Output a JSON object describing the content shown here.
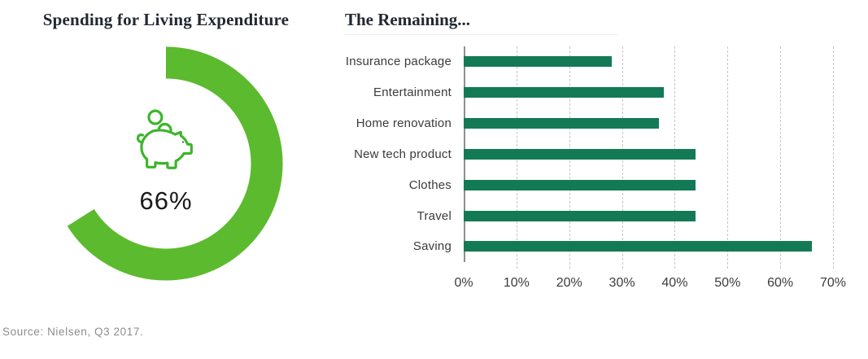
{
  "footer": {
    "source": "Source: Nielsen, Q3 2017."
  },
  "colors": {
    "ring_green": "#5cba2e",
    "pig_green": "#3db42c",
    "bar_green": "#147a55",
    "grid_gray": "#c6c6c6",
    "axis_gray": "#8f8f8f",
    "title_color": "#222831"
  },
  "chart_data": [
    {
      "type": "pie",
      "subtype": "donut",
      "title": "Spending for Living Expenditure",
      "labels": [
        "Spending for Living Expenditure",
        "Remaining"
      ],
      "values": [
        66,
        34
      ],
      "center_icon": "piggy-bank-icon",
      "center_label": "66%",
      "color": "#5cba2e",
      "start_angle": "top",
      "direction": "clockwise"
    },
    {
      "type": "bar",
      "orientation": "horizontal",
      "title": "The Remaining...",
      "categories": [
        "Insurance package",
        "Entertainment",
        "Home renovation",
        "New tech product",
        "Clothes",
        "Travel",
        "Saving"
      ],
      "values": [
        28,
        38,
        37,
        44,
        44,
        44,
        66
      ],
      "unit": "%",
      "xlabel": "",
      "ylabel": "",
      "xlim": [
        0,
        70
      ],
      "x_ticks": [
        "0%",
        "10%",
        "20%",
        "30%",
        "40%",
        "50%",
        "60%",
        "70%"
      ],
      "grid": "vertical-dashed",
      "legend": "none",
      "bar_color": "#147a55"
    }
  ]
}
